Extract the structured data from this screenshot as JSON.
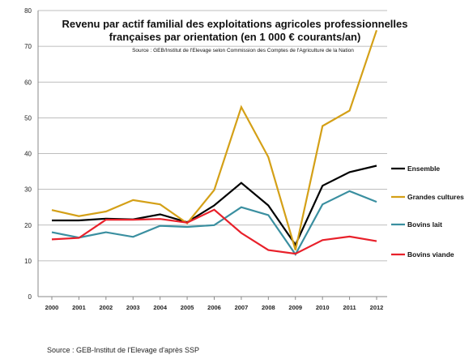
{
  "chart_data": {
    "type": "line",
    "title_line1": "Revenu par actif familial des exploitations agricoles professionnelles",
    "title_line2": "françaises par orientation (en 1 000 € courants/an)",
    "subtitle": "Source : GEB/Institut de l'Elevage selon Commission des Comptes de l'Agriculture de la Nation",
    "x": [
      "2000",
      "2001",
      "2002",
      "2003",
      "2004",
      "2005",
      "2006",
      "2007",
      "2008",
      "2009",
      "2010",
      "2011",
      "2012"
    ],
    "ylim": [
      0,
      80
    ],
    "yticks": [
      0,
      10,
      20,
      30,
      40,
      50,
      60,
      70,
      80
    ],
    "grid": true,
    "legend_position": "right",
    "series": [
      {
        "name": "Ensemble",
        "color": "#000000",
        "values": [
          21.3,
          21.3,
          21.8,
          21.6,
          23.0,
          20.8,
          25.5,
          31.8,
          25.5,
          14.5,
          31.0,
          34.8,
          36.6
        ]
      },
      {
        "name": "Grandes cultures",
        "color": "#D4A017",
        "values": [
          24.2,
          22.5,
          23.8,
          27.0,
          25.8,
          20.5,
          29.8,
          53.0,
          39.0,
          13.0,
          47.7,
          52.0,
          74.5
        ]
      },
      {
        "name": "Bovins lait",
        "color": "#3A8FA0",
        "values": [
          18.0,
          16.5,
          18.0,
          16.7,
          19.8,
          19.5,
          20.0,
          25.0,
          22.8,
          11.8,
          25.8,
          29.5,
          26.5
        ]
      },
      {
        "name": "Bovins viande",
        "color": "#E8202A",
        "values": [
          16.0,
          16.4,
          21.5,
          21.5,
          21.7,
          20.7,
          24.3,
          17.8,
          13.0,
          12.0,
          15.8,
          16.8,
          15.5
        ]
      }
    ]
  },
  "footer": "Source : GEB-Institut de l'Elevage  d'après SSP"
}
